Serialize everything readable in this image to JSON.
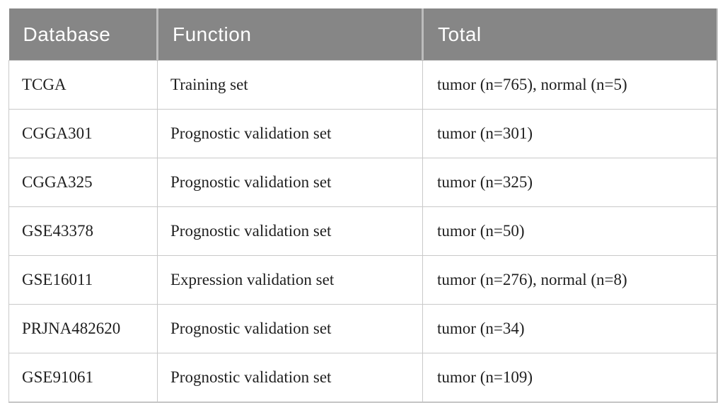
{
  "table": {
    "columns": [
      {
        "label": "Database"
      },
      {
        "label": "Function"
      },
      {
        "label": "Total"
      }
    ],
    "rows": [
      {
        "database": "TCGA",
        "function": "Training set",
        "total": "tumor (n=765), normal (n=5)"
      },
      {
        "database": "CGGA301",
        "function": "Prognostic validation set",
        "total": "tumor (n=301)"
      },
      {
        "database": "CGGA325",
        "function": "Prognostic validation set",
        "total": "tumor (n=325)"
      },
      {
        "database": "GSE43378",
        "function": "Prognostic validation set",
        "total": "tumor (n=50)"
      },
      {
        "database": "GSE16011",
        "function": "Expression validation set",
        "total": "tumor (n=276), normal (n=8)"
      },
      {
        "database": "PRJNA482620",
        "function": "Prognostic validation set",
        "total": "tumor (n=34)"
      },
      {
        "database": "GSE91061",
        "function": "Prognostic validation set",
        "total": "tumor (n=109)"
      }
    ]
  },
  "colors": {
    "header_background": "#868686",
    "header_text": "#ffffff",
    "body_text": "#1f1f1f",
    "grid_border": "#c9c9c9",
    "outer_border": "#c4c4c4"
  }
}
